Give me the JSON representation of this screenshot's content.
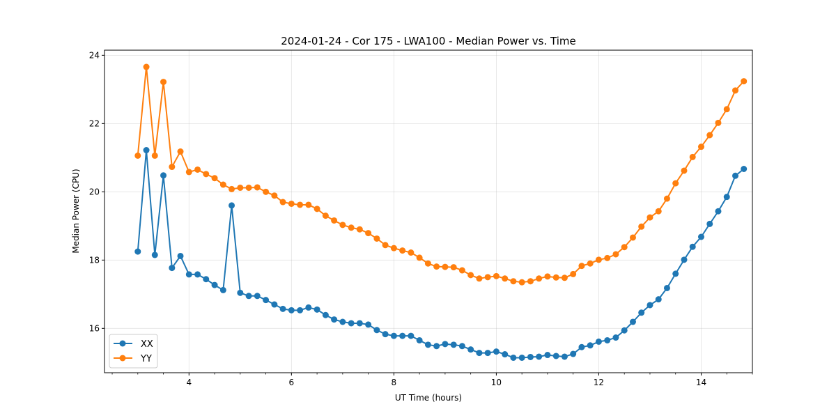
{
  "chart_data": {
    "type": "line",
    "title": "2024-01-24 - Cor 175 - LWA100 - Median Power vs. Time",
    "xlabel": "UT Time (hours)",
    "ylabel": "Median Power (CPU)",
    "xlim": [
      2.35,
      15.0
    ],
    "ylim": [
      14.7,
      24.15
    ],
    "xticks": [
      4,
      6,
      8,
      10,
      12,
      14
    ],
    "xminor_step": 0.5,
    "yticks": [
      16,
      18,
      20,
      22,
      24
    ],
    "grid": true,
    "legend_position": "lower-left",
    "series": [
      {
        "name": "XX",
        "color": "#1f77b4",
        "x": [
          3.0,
          3.167,
          3.333,
          3.5,
          3.667,
          3.833,
          4.0,
          4.167,
          4.333,
          4.5,
          4.667,
          4.833,
          5.0,
          5.167,
          5.333,
          5.5,
          5.667,
          5.833,
          6.0,
          6.167,
          6.333,
          6.5,
          6.667,
          6.833,
          7.0,
          7.167,
          7.333,
          7.5,
          7.667,
          7.833,
          8.0,
          8.167,
          8.333,
          8.5,
          8.667,
          8.833,
          9.0,
          9.167,
          9.333,
          9.5,
          9.667,
          9.833,
          10.0,
          10.167,
          10.333,
          10.5,
          10.667,
          10.833,
          11.0,
          11.167,
          11.333,
          11.5,
          11.667,
          11.833,
          12.0,
          12.167,
          12.333,
          12.5,
          12.667,
          12.833,
          13.0,
          13.167,
          13.333,
          13.5,
          13.667,
          13.833,
          14.0,
          14.167,
          14.333,
          14.5,
          14.667,
          14.833
        ],
        "y": [
          18.25,
          21.22,
          18.15,
          20.48,
          17.77,
          18.12,
          17.58,
          17.58,
          17.44,
          17.27,
          17.12,
          19.6,
          17.04,
          16.95,
          16.95,
          16.83,
          16.7,
          16.57,
          16.53,
          16.53,
          16.61,
          16.55,
          16.39,
          16.26,
          16.19,
          16.15,
          16.15,
          16.11,
          15.95,
          15.83,
          15.78,
          15.78,
          15.78,
          15.65,
          15.52,
          15.48,
          15.54,
          15.52,
          15.48,
          15.38,
          15.28,
          15.28,
          15.32,
          15.24,
          15.14,
          15.14,
          15.16,
          15.17,
          15.22,
          15.19,
          15.17,
          15.25,
          15.45,
          15.5,
          15.61,
          15.65,
          15.73,
          15.94,
          16.19,
          16.46,
          16.68,
          16.85,
          17.18,
          17.6,
          18.01,
          18.39,
          18.68,
          19.06,
          19.43,
          19.85,
          20.47,
          20.67
        ]
      },
      {
        "name": "YY",
        "color": "#ff7f0e",
        "x": [
          3.0,
          3.167,
          3.333,
          3.5,
          3.667,
          3.833,
          4.0,
          4.167,
          4.333,
          4.5,
          4.667,
          4.833,
          5.0,
          5.167,
          5.333,
          5.5,
          5.667,
          5.833,
          6.0,
          6.167,
          6.333,
          6.5,
          6.667,
          6.833,
          7.0,
          7.167,
          7.333,
          7.5,
          7.667,
          7.833,
          8.0,
          8.167,
          8.333,
          8.5,
          8.667,
          8.833,
          9.0,
          9.167,
          9.333,
          9.5,
          9.667,
          9.833,
          10.0,
          10.167,
          10.333,
          10.5,
          10.667,
          10.833,
          11.0,
          11.167,
          11.333,
          11.5,
          11.667,
          11.833,
          12.0,
          12.167,
          12.333,
          12.5,
          12.667,
          12.833,
          13.0,
          13.167,
          13.333,
          13.5,
          13.667,
          13.833,
          14.0,
          14.167,
          14.333,
          14.5,
          14.667,
          14.833
        ],
        "y": [
          21.06,
          23.66,
          21.06,
          23.22,
          20.73,
          21.18,
          20.58,
          20.65,
          20.52,
          20.4,
          20.21,
          20.08,
          20.12,
          20.12,
          20.13,
          20.0,
          19.89,
          19.7,
          19.65,
          19.62,
          19.62,
          19.5,
          19.3,
          19.16,
          19.03,
          18.95,
          18.9,
          18.79,
          18.63,
          18.44,
          18.35,
          18.28,
          18.22,
          18.07,
          17.9,
          17.81,
          17.8,
          17.79,
          17.7,
          17.56,
          17.46,
          17.5,
          17.53,
          17.46,
          17.38,
          17.35,
          17.38,
          17.46,
          17.52,
          17.49,
          17.48,
          17.59,
          17.83,
          17.9,
          18.01,
          18.06,
          18.17,
          18.38,
          18.66,
          18.98,
          19.25,
          19.43,
          19.8,
          20.25,
          20.62,
          21.02,
          21.32,
          21.66,
          22.02,
          22.42,
          22.97,
          23.24
        ]
      }
    ]
  }
}
